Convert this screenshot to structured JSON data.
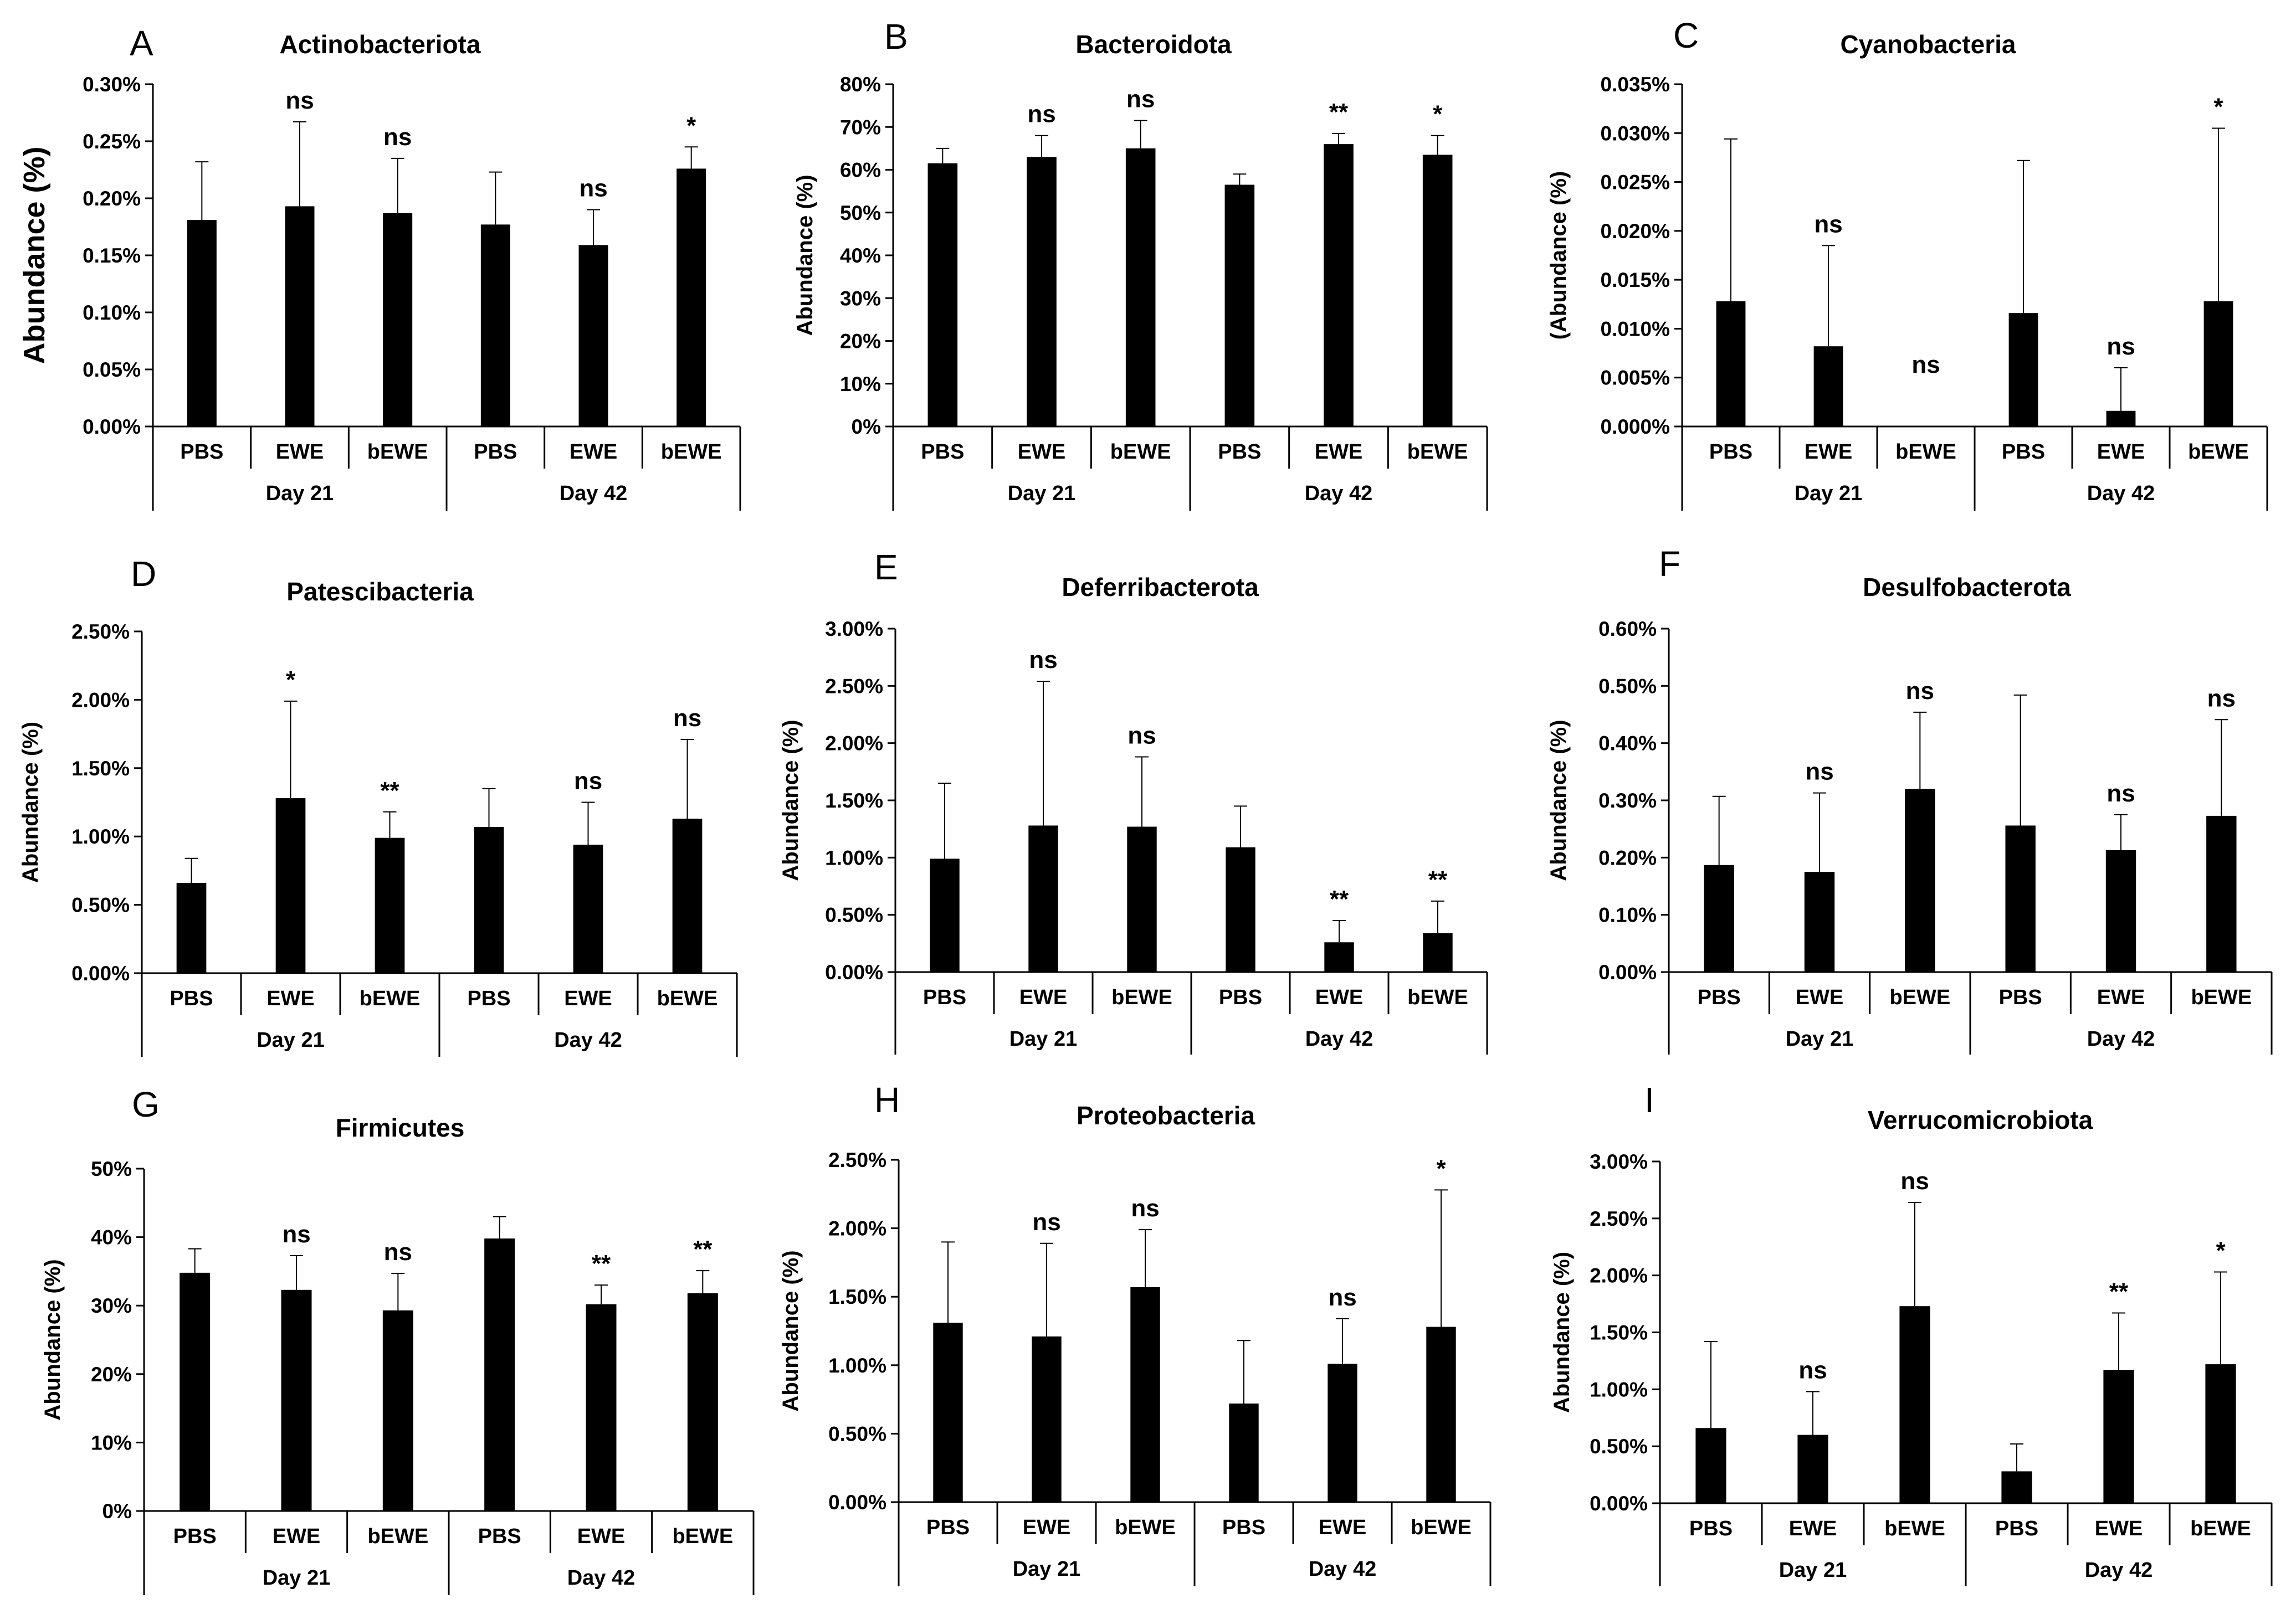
{
  "chart_data": [
    {
      "panel": "A",
      "title": "Actinobacteriota",
      "type": "bar",
      "ylabel": "Abundance (%)",
      "yticks": [
        "0.00%",
        "0.05%",
        "0.10%",
        "0.15%",
        "0.20%",
        "0.25%",
        "0.30%"
      ],
      "ylim": [
        0,
        0.3
      ],
      "categories": [
        "PBS",
        "EWE",
        "bEWE",
        "PBS",
        "EWE",
        "bEWE"
      ],
      "groups": [
        "Day 21",
        "Day 42"
      ],
      "values": [
        0.181,
        0.193,
        0.187,
        0.177,
        0.159,
        0.226
      ],
      "errors": [
        0.051,
        0.074,
        0.048,
        0.046,
        0.031,
        0.019
      ],
      "significance": [
        "",
        "ns",
        "ns",
        "",
        "ns",
        "*"
      ]
    },
    {
      "panel": "B",
      "title": "Bacteroidota",
      "type": "bar",
      "ylabel": "Abundance (%)",
      "yticks": [
        "0%",
        "10%",
        "20%",
        "30%",
        "40%",
        "50%",
        "60%",
        "70%",
        "80%"
      ],
      "ylim": [
        0,
        80
      ],
      "categories": [
        "PBS",
        "EWE",
        "bEWE",
        "PBS",
        "EWE",
        "bEWE"
      ],
      "groups": [
        "Day 21",
        "Day 42"
      ],
      "values": [
        61.5,
        63.0,
        65.0,
        56.5,
        66.0,
        63.5
      ],
      "errors": [
        3.5,
        5.0,
        6.5,
        2.5,
        2.5,
        4.5
      ],
      "significance": [
        "",
        "ns",
        "ns",
        "",
        "**",
        "*"
      ]
    },
    {
      "panel": "C",
      "title": "Cyanobacteria",
      "type": "bar",
      "ylabel": "(Abundance (%)",
      "yticks": [
        "0.000%",
        "0.005%",
        "0.010%",
        "0.015%",
        "0.020%",
        "0.025%",
        "0.030%",
        "0.035%"
      ],
      "ylim": [
        0,
        0.035
      ],
      "categories": [
        "PBS",
        "EWE",
        "bEWE",
        "PBS",
        "EWE",
        "bEWE"
      ],
      "groups": [
        "Day 21",
        "Day 42"
      ],
      "values": [
        0.0128,
        0.0082,
        0.0,
        0.0116,
        0.0016,
        0.0128
      ],
      "errors": [
        0.0166,
        0.0103,
        0.0,
        0.0156,
        0.0044,
        0.0177
      ],
      "significance": [
        "",
        "ns",
        "ns",
        "",
        "ns",
        "*"
      ]
    },
    {
      "panel": "D",
      "title": "Patescibacteria",
      "type": "bar",
      "ylabel": "Abundance (%)",
      "yticks": [
        "0.00%",
        "0.50%",
        "1.00%",
        "1.50%",
        "2.00%",
        "2.50%"
      ],
      "ylim": [
        0,
        2.5
      ],
      "categories": [
        "PBS",
        "EWE",
        "bEWE",
        "PBS",
        "EWE",
        "bEWE"
      ],
      "groups": [
        "Day 21",
        "Day 42"
      ],
      "values": [
        0.66,
        1.28,
        0.99,
        1.07,
        0.94,
        1.13
      ],
      "errors": [
        0.18,
        0.71,
        0.19,
        0.28,
        0.31,
        0.58
      ],
      "significance": [
        "",
        "*",
        "**",
        "",
        "ns",
        "ns"
      ]
    },
    {
      "panel": "E",
      "title": "Deferribacterota",
      "type": "bar",
      "ylabel": "Abundance (%)",
      "yticks": [
        "0.00%",
        "0.50%",
        "1.00%",
        "1.50%",
        "2.00%",
        "2.50%",
        "3.00%"
      ],
      "ylim": [
        0,
        3.0
      ],
      "categories": [
        "PBS",
        "EWE",
        "bEWE",
        "PBS",
        "EWE",
        "bEWE"
      ],
      "groups": [
        "Day 21",
        "Day 42"
      ],
      "values": [
        0.99,
        1.28,
        1.27,
        1.09,
        0.26,
        0.34
      ],
      "errors": [
        0.66,
        1.26,
        0.61,
        0.36,
        0.19,
        0.28
      ],
      "significance": [
        "",
        "ns",
        "ns",
        "",
        "**",
        "**"
      ]
    },
    {
      "panel": "F",
      "title": "Desulfobacterota",
      "type": "bar",
      "ylabel": "Abundance (%)",
      "yticks": [
        "0.00%",
        "0.10%",
        "0.20%",
        "0.30%",
        "0.40%",
        "0.50%",
        "0.60%"
      ],
      "ylim": [
        0,
        0.6
      ],
      "categories": [
        "PBS",
        "EWE",
        "bEWE",
        "PBS",
        "EWE",
        "bEWE"
      ],
      "groups": [
        "Day 21",
        "Day 42"
      ],
      "values": [
        0.187,
        0.175,
        0.32,
        0.256,
        0.213,
        0.273
      ],
      "errors": [
        0.12,
        0.138,
        0.134,
        0.228,
        0.062,
        0.168
      ],
      "significance": [
        "",
        "ns",
        "ns",
        "",
        "ns",
        "ns"
      ]
    },
    {
      "panel": "G",
      "title": "Firmicutes",
      "type": "bar",
      "ylabel": "Abundance (%)",
      "yticks": [
        "0%",
        "10%",
        "20%",
        "30%",
        "40%",
        "50%"
      ],
      "ylim": [
        0,
        50
      ],
      "categories": [
        "PBS",
        "EWE",
        "bEWE",
        "PBS",
        "EWE",
        "bEWE"
      ],
      "groups": [
        "Day 21",
        "Day 42"
      ],
      "values": [
        34.8,
        32.3,
        29.3,
        39.8,
        30.2,
        31.8
      ],
      "errors": [
        3.5,
        5.0,
        5.4,
        3.2,
        2.8,
        3.3
      ],
      "significance": [
        "",
        "ns",
        "ns",
        "",
        "**",
        "**"
      ]
    },
    {
      "panel": "H",
      "title": "Proteobacteria",
      "type": "bar",
      "ylabel": "Abundance (%)",
      "yticks": [
        "0.00%",
        "0.50%",
        "1.00%",
        "1.50%",
        "2.00%",
        "2.50%"
      ],
      "ylim": [
        0,
        2.5
      ],
      "categories": [
        "PBS",
        "EWE",
        "bEWE",
        "PBS",
        "EWE",
        "bEWE"
      ],
      "groups": [
        "Day 21",
        "Day 42"
      ],
      "values": [
        1.31,
        1.21,
        1.57,
        0.72,
        1.01,
        1.28
      ],
      "errors": [
        0.59,
        0.68,
        0.42,
        0.46,
        0.33,
        1.0
      ],
      "significance": [
        "",
        "ns",
        "ns",
        "",
        "ns",
        "*"
      ]
    },
    {
      "panel": "I",
      "title": "Verrucomicrobiota",
      "type": "bar",
      "ylabel": "Abundance (%)",
      "yticks": [
        "0.00%",
        "0.50%",
        "1.00%",
        "1.50%",
        "2.00%",
        "2.50%",
        "3.00%"
      ],
      "ylim": [
        0,
        3.0
      ],
      "categories": [
        "PBS",
        "EWE",
        "bEWE",
        "PBS",
        "EWE",
        "bEWE"
      ],
      "groups": [
        "Day 21",
        "Day 42"
      ],
      "values": [
        0.66,
        0.6,
        1.73,
        0.28,
        1.17,
        1.22
      ],
      "errors": [
        0.76,
        0.38,
        0.91,
        0.24,
        0.5,
        0.81
      ],
      "significance": [
        "",
        "ns",
        "ns",
        "",
        "**",
        "*"
      ]
    }
  ]
}
